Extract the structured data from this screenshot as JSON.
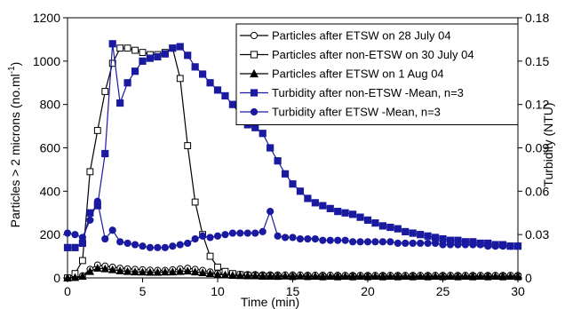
{
  "chart_data": {
    "type": "line",
    "xlabel": "Time (min)",
    "ylabel_left": "Particles > 2 microns (no.ml",
    "ylabel_left_sup": "-1",
    "ylabel_left_end": ")",
    "ylabel_right": "Turbidity (NTU)",
    "xlim": [
      0,
      30
    ],
    "ylim_left": [
      0,
      1200
    ],
    "ylim_right": [
      0,
      0.18
    ],
    "x_ticks": [
      0,
      5,
      10,
      15,
      20,
      25,
      30
    ],
    "y_left_ticks": [
      0,
      200,
      400,
      600,
      800,
      1000,
      1200
    ],
    "y_right_ticks": [
      "0",
      "0.03",
      "0.06",
      "0.09",
      "0.12",
      "0.15",
      "0.18"
    ],
    "legend_position": "top-right",
    "series": [
      {
        "name": "Particles after ETSW on 28 July 04",
        "axis": "left",
        "marker": "circle-open",
        "color": "#000000",
        "x": [
          0,
          0.5,
          1,
          1.5,
          2,
          2.5,
          3,
          3.5,
          4,
          4.5,
          5,
          5.5,
          6,
          6.5,
          7,
          7.5,
          8,
          8.5,
          9,
          9.5,
          10,
          10.5,
          11,
          11.5,
          12,
          12.5,
          13,
          13.5,
          14,
          14.5,
          15,
          15.5,
          16,
          16.5,
          17,
          17.5,
          18,
          18.5,
          19,
          19.5,
          20,
          20.5,
          21,
          21.5,
          22,
          22.5,
          23,
          23.5,
          24,
          24.5,
          25,
          25.5,
          26,
          26.5,
          27,
          27.5,
          28,
          28.5,
          29,
          29.5,
          30
        ],
        "values": [
          0,
          2,
          10,
          40,
          60,
          55,
          50,
          45,
          42,
          40,
          38,
          36,
          35,
          35,
          38,
          42,
          45,
          40,
          35,
          28,
          22,
          20,
          18,
          17,
          16,
          16,
          15,
          15,
          14,
          14,
          14,
          14,
          13,
          13,
          13,
          13,
          13,
          12,
          12,
          12,
          12,
          12,
          12,
          12,
          12,
          12,
          12,
          12,
          12,
          12,
          12,
          12,
          12,
          12,
          12,
          12,
          12,
          12,
          12,
          12,
          12
        ]
      },
      {
        "name": "Particles after non-ETSW on 30 July 04",
        "axis": "left",
        "marker": "square-open",
        "color": "#000000",
        "x": [
          0,
          0.5,
          1,
          1.5,
          2,
          2.5,
          3,
          3.5,
          4,
          4.5,
          5,
          5.5,
          6,
          6.5,
          7,
          7.5,
          8,
          8.5,
          9,
          9.5,
          10,
          10.5,
          11,
          11.5,
          12,
          12.5,
          13,
          13.5,
          14,
          15,
          16,
          17,
          18,
          19,
          20,
          21,
          22,
          23,
          24,
          25,
          26,
          27,
          28,
          29,
          30
        ],
        "values": [
          0,
          20,
          80,
          490,
          680,
          860,
          990,
          1060,
          1060,
          1050,
          1040,
          1030,
          1030,
          1040,
          1060,
          920,
          610,
          350,
          200,
          100,
          50,
          30,
          20,
          15,
          12,
          10,
          8,
          8,
          7,
          6,
          6,
          5,
          5,
          5,
          5,
          5,
          5,
          5,
          5,
          5,
          5,
          5,
          5,
          5,
          5
        ]
      },
      {
        "name": "Particles after ETSW on 1 Aug 04",
        "axis": "left",
        "marker": "triangle-filled",
        "color": "#000000",
        "x": [
          0,
          0.5,
          1,
          1.5,
          2,
          2.5,
          3,
          3.5,
          4,
          4.5,
          5,
          5.5,
          6,
          6.5,
          7,
          7.5,
          8,
          8.5,
          9,
          9.5,
          10,
          10.5,
          11,
          11.5,
          12,
          12.5,
          13,
          13.5,
          14,
          14.5,
          15,
          15.5,
          16,
          16.5,
          17,
          17.5,
          18,
          18.5,
          19,
          19.5,
          20,
          20.5,
          21,
          21.5,
          22,
          22.5,
          23,
          23.5,
          24,
          24.5,
          25,
          25.5,
          26,
          26.5,
          27,
          27.5,
          28,
          28.5,
          29,
          29.5,
          30
        ],
        "values": [
          0,
          2,
          8,
          30,
          45,
          42,
          38,
          33,
          30,
          28,
          27,
          26,
          26,
          27,
          28,
          30,
          32,
          28,
          24,
          20,
          16,
          14,
          12,
          11,
          10,
          10,
          9,
          9,
          9,
          9,
          9,
          9,
          8,
          8,
          8,
          8,
          8,
          8,
          8,
          8,
          8,
          8,
          8,
          8,
          8,
          8,
          8,
          8,
          8,
          8,
          8,
          8,
          8,
          8,
          8,
          8,
          8,
          8,
          8,
          8,
          8
        ]
      },
      {
        "name": "Turbidity after non-ETSW -Mean, n=3",
        "axis": "right",
        "marker": "square-filled",
        "color": "#1a1aa0",
        "x": [
          0,
          0.5,
          1,
          1.5,
          2,
          2.5,
          3,
          3.5,
          4,
          4.5,
          5,
          5.5,
          6,
          6.5,
          7,
          7.5,
          8,
          8.5,
          9,
          9.5,
          10,
          10.5,
          11,
          11.5,
          12,
          12.5,
          13,
          13.5,
          14,
          14.5,
          15,
          15.5,
          16,
          16.5,
          17,
          17.5,
          18,
          18.5,
          19,
          19.5,
          20,
          20.5,
          21,
          21.5,
          22,
          22.5,
          23,
          23.5,
          24,
          24.5,
          25,
          25.5,
          26,
          26.5,
          27,
          27.5,
          28,
          28.5,
          29,
          29.5,
          30
        ],
        "values": [
          0.021,
          0.021,
          0.024,
          0.045,
          0.05,
          0.086,
          0.162,
          0.121,
          0.135,
          0.143,
          0.15,
          0.152,
          0.153,
          0.155,
          0.159,
          0.16,
          0.154,
          0.146,
          0.141,
          0.135,
          0.13,
          0.126,
          0.12,
          0.113,
          0.106,
          0.104,
          0.1,
          0.09,
          0.081,
          0.072,
          0.065,
          0.06,
          0.055,
          0.052,
          0.05,
          0.048,
          0.046,
          0.045,
          0.044,
          0.042,
          0.04,
          0.038,
          0.036,
          0.035,
          0.034,
          0.032,
          0.031,
          0.03,
          0.029,
          0.028,
          0.027,
          0.026,
          0.026,
          0.025,
          0.025,
          0.024,
          0.024,
          0.023,
          0.023,
          0.022,
          0.022
        ]
      },
      {
        "name": "Turbidity after ETSW -Mean, n=3",
        "axis": "right",
        "marker": "circle-filled",
        "color": "#1a1aa0",
        "x": [
          0,
          0.5,
          1,
          1.5,
          2,
          2.5,
          3,
          3.5,
          4,
          4.5,
          5,
          5.5,
          6,
          6.5,
          7,
          7.5,
          8,
          8.5,
          9,
          9.5,
          10,
          10.5,
          11,
          11.5,
          12,
          12.5,
          13,
          13.5,
          14,
          14.5,
          15,
          15.5,
          16,
          16.5,
          17,
          17.5,
          18,
          18.5,
          19,
          19.5,
          20,
          20.5,
          21,
          21.5,
          22,
          22.5,
          23,
          23.5,
          24,
          24.5,
          25,
          25.5,
          26,
          26.5,
          27,
          27.5,
          28,
          28.5,
          29,
          29.5,
          30
        ],
        "values": [
          0.031,
          0.03,
          0.028,
          0.04,
          0.053,
          0.027,
          0.033,
          0.025,
          0.024,
          0.023,
          0.022,
          0.021,
          0.021,
          0.021,
          0.022,
          0.023,
          0.024,
          0.027,
          0.029,
          0.028,
          0.029,
          0.03,
          0.031,
          0.031,
          0.031,
          0.031,
          0.032,
          0.046,
          0.029,
          0.028,
          0.028,
          0.027,
          0.027,
          0.027,
          0.026,
          0.026,
          0.026,
          0.026,
          0.025,
          0.025,
          0.025,
          0.025,
          0.025,
          0.025,
          0.024,
          0.024,
          0.024,
          0.024,
          0.024,
          0.024,
          0.023,
          0.023,
          0.023,
          0.023,
          0.023,
          0.023,
          0.022,
          0.022,
          0.022,
          0.022,
          0.022
        ]
      }
    ]
  }
}
